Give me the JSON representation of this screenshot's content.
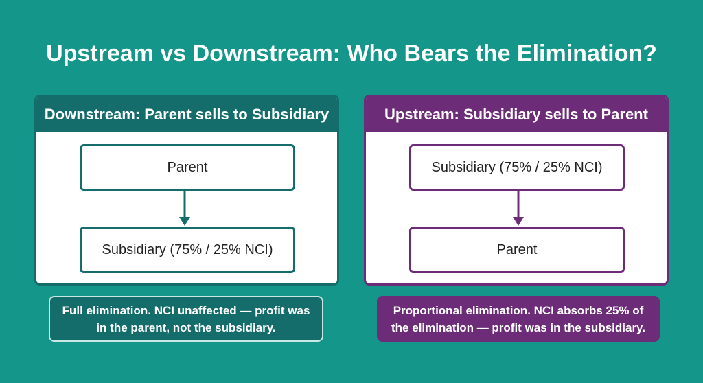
{
  "title": "Upstream vs Downstream: Who Bears the Elimination?",
  "colors": {
    "background": "#14968a",
    "downstream_accent": "#146d6a",
    "upstream_accent": "#6d2c78"
  },
  "downstream": {
    "header": "Downstream: Parent sells to Subsidiary",
    "from_node": "Parent",
    "to_node": "Subsidiary (75% / 25% NCI)",
    "note": "Full elimination. NCI unaffected — profit was in the parent, not the subsidiary."
  },
  "upstream": {
    "header": "Upstream: Subsidiary sells to Parent",
    "from_node": "Subsidiary (75% / 25% NCI)",
    "to_node": "Parent",
    "note": "Proportional elimination. NCI absorbs 25% of the elimination — profit was in the subsidiary."
  }
}
